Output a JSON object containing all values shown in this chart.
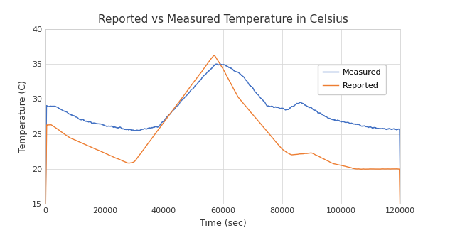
{
  "title": "Reported vs Measured Temperature in Celsius",
  "xlabel": "Time (sec)",
  "ylabel": "Temperature (C)",
  "xlim": [
    0,
    120000
  ],
  "ylim": [
    15,
    40
  ],
  "yticks": [
    15,
    20,
    25,
    30,
    35,
    40
  ],
  "xticks": [
    0,
    20000,
    40000,
    60000,
    80000,
    100000,
    120000
  ],
  "measured_color": "#4472C4",
  "reported_color": "#ED7D31",
  "background_color": "#FFFFFF",
  "plot_area_color": "#FFFFFF",
  "grid_color": "#D9D9D9",
  "legend_labels": [
    "Measured",
    "Reported"
  ],
  "title_fontsize": 11,
  "axis_fontsize": 9,
  "tick_fontsize": 8,
  "line_width": 1.0
}
